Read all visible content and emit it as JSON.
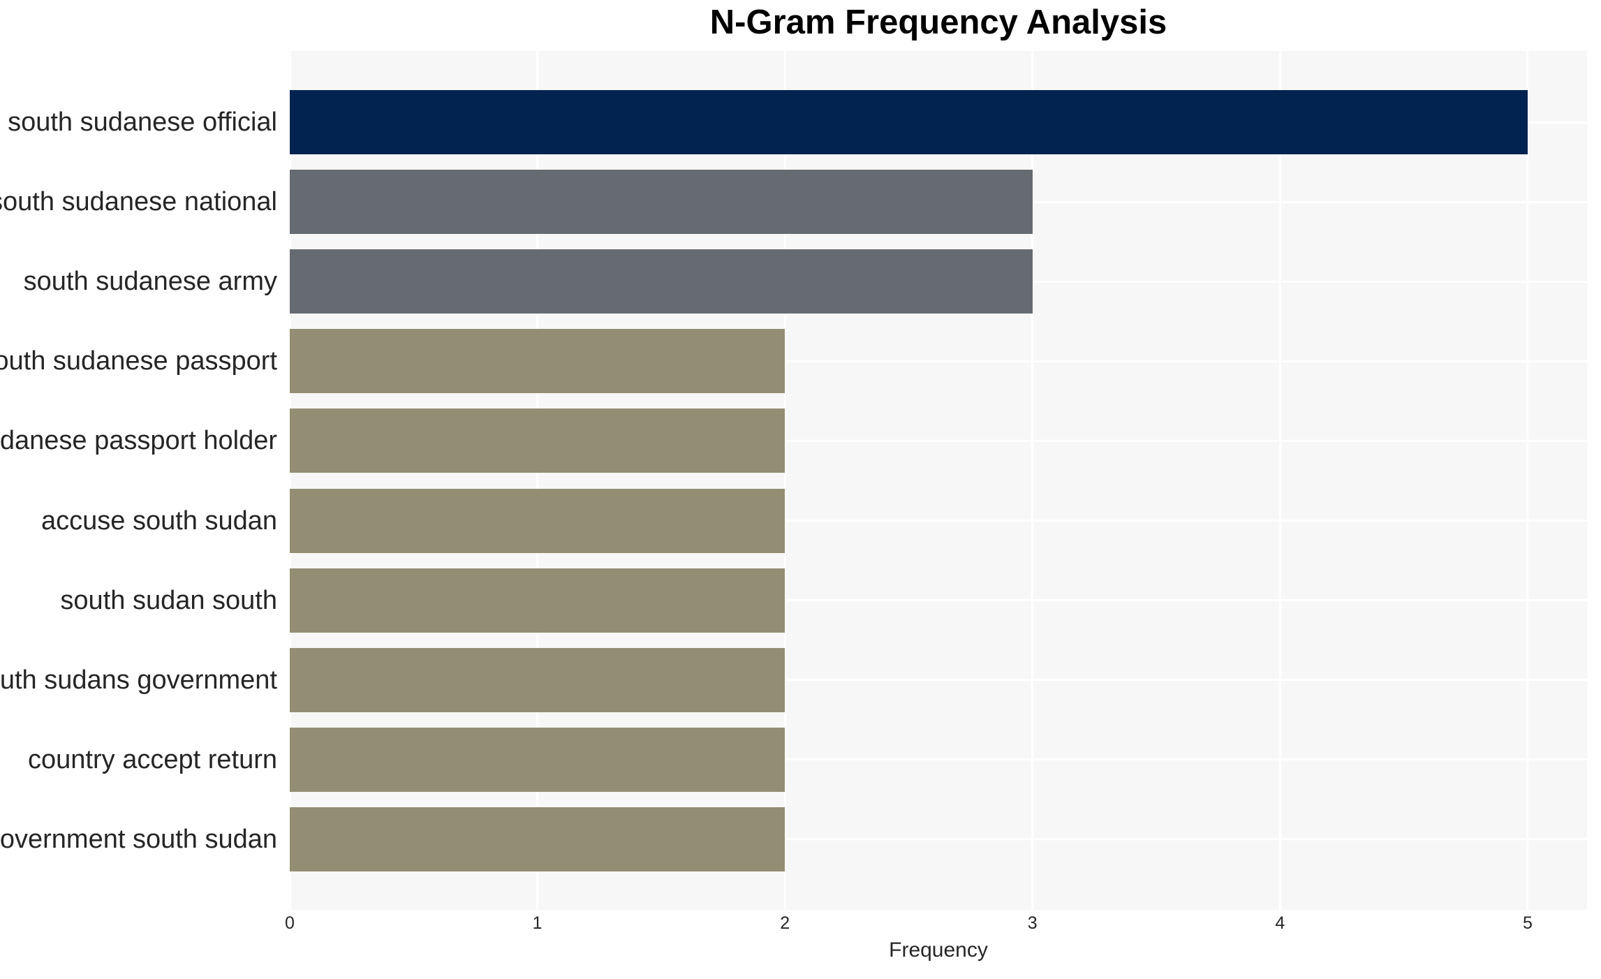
{
  "chart_data": {
    "type": "bar",
    "orientation": "horizontal",
    "title": "N-Gram Frequency Analysis",
    "xlabel": "Frequency",
    "ylabel": "",
    "categories": [
      "south sudanese official",
      "south sudanese national",
      "south sudanese army",
      "south sudanese passport",
      "sudanese passport holder",
      "accuse south sudan",
      "south sudan south",
      "south sudans government",
      "country accept return",
      "government south sudan"
    ],
    "values": [
      5,
      3,
      3,
      2,
      2,
      2,
      2,
      2,
      2,
      2
    ],
    "bar_colors": [
      "#02234F",
      "#666A71",
      "#666A71",
      "#938E73",
      "#938E73",
      "#938E73",
      "#938E73",
      "#938E73",
      "#938E73",
      "#938E73"
    ],
    "xticks": [
      "0",
      "1",
      "2",
      "3",
      "4",
      "5"
    ],
    "xlim": [
      0,
      5.24
    ],
    "grid": true,
    "legend": "none",
    "colors": {
      "plot_background": "#f7f7f7",
      "figure_background": "#ffffff",
      "gridline": "#ffffff",
      "tick_text": "#262626",
      "label_text": "#262626",
      "title_text": "#000000"
    }
  }
}
